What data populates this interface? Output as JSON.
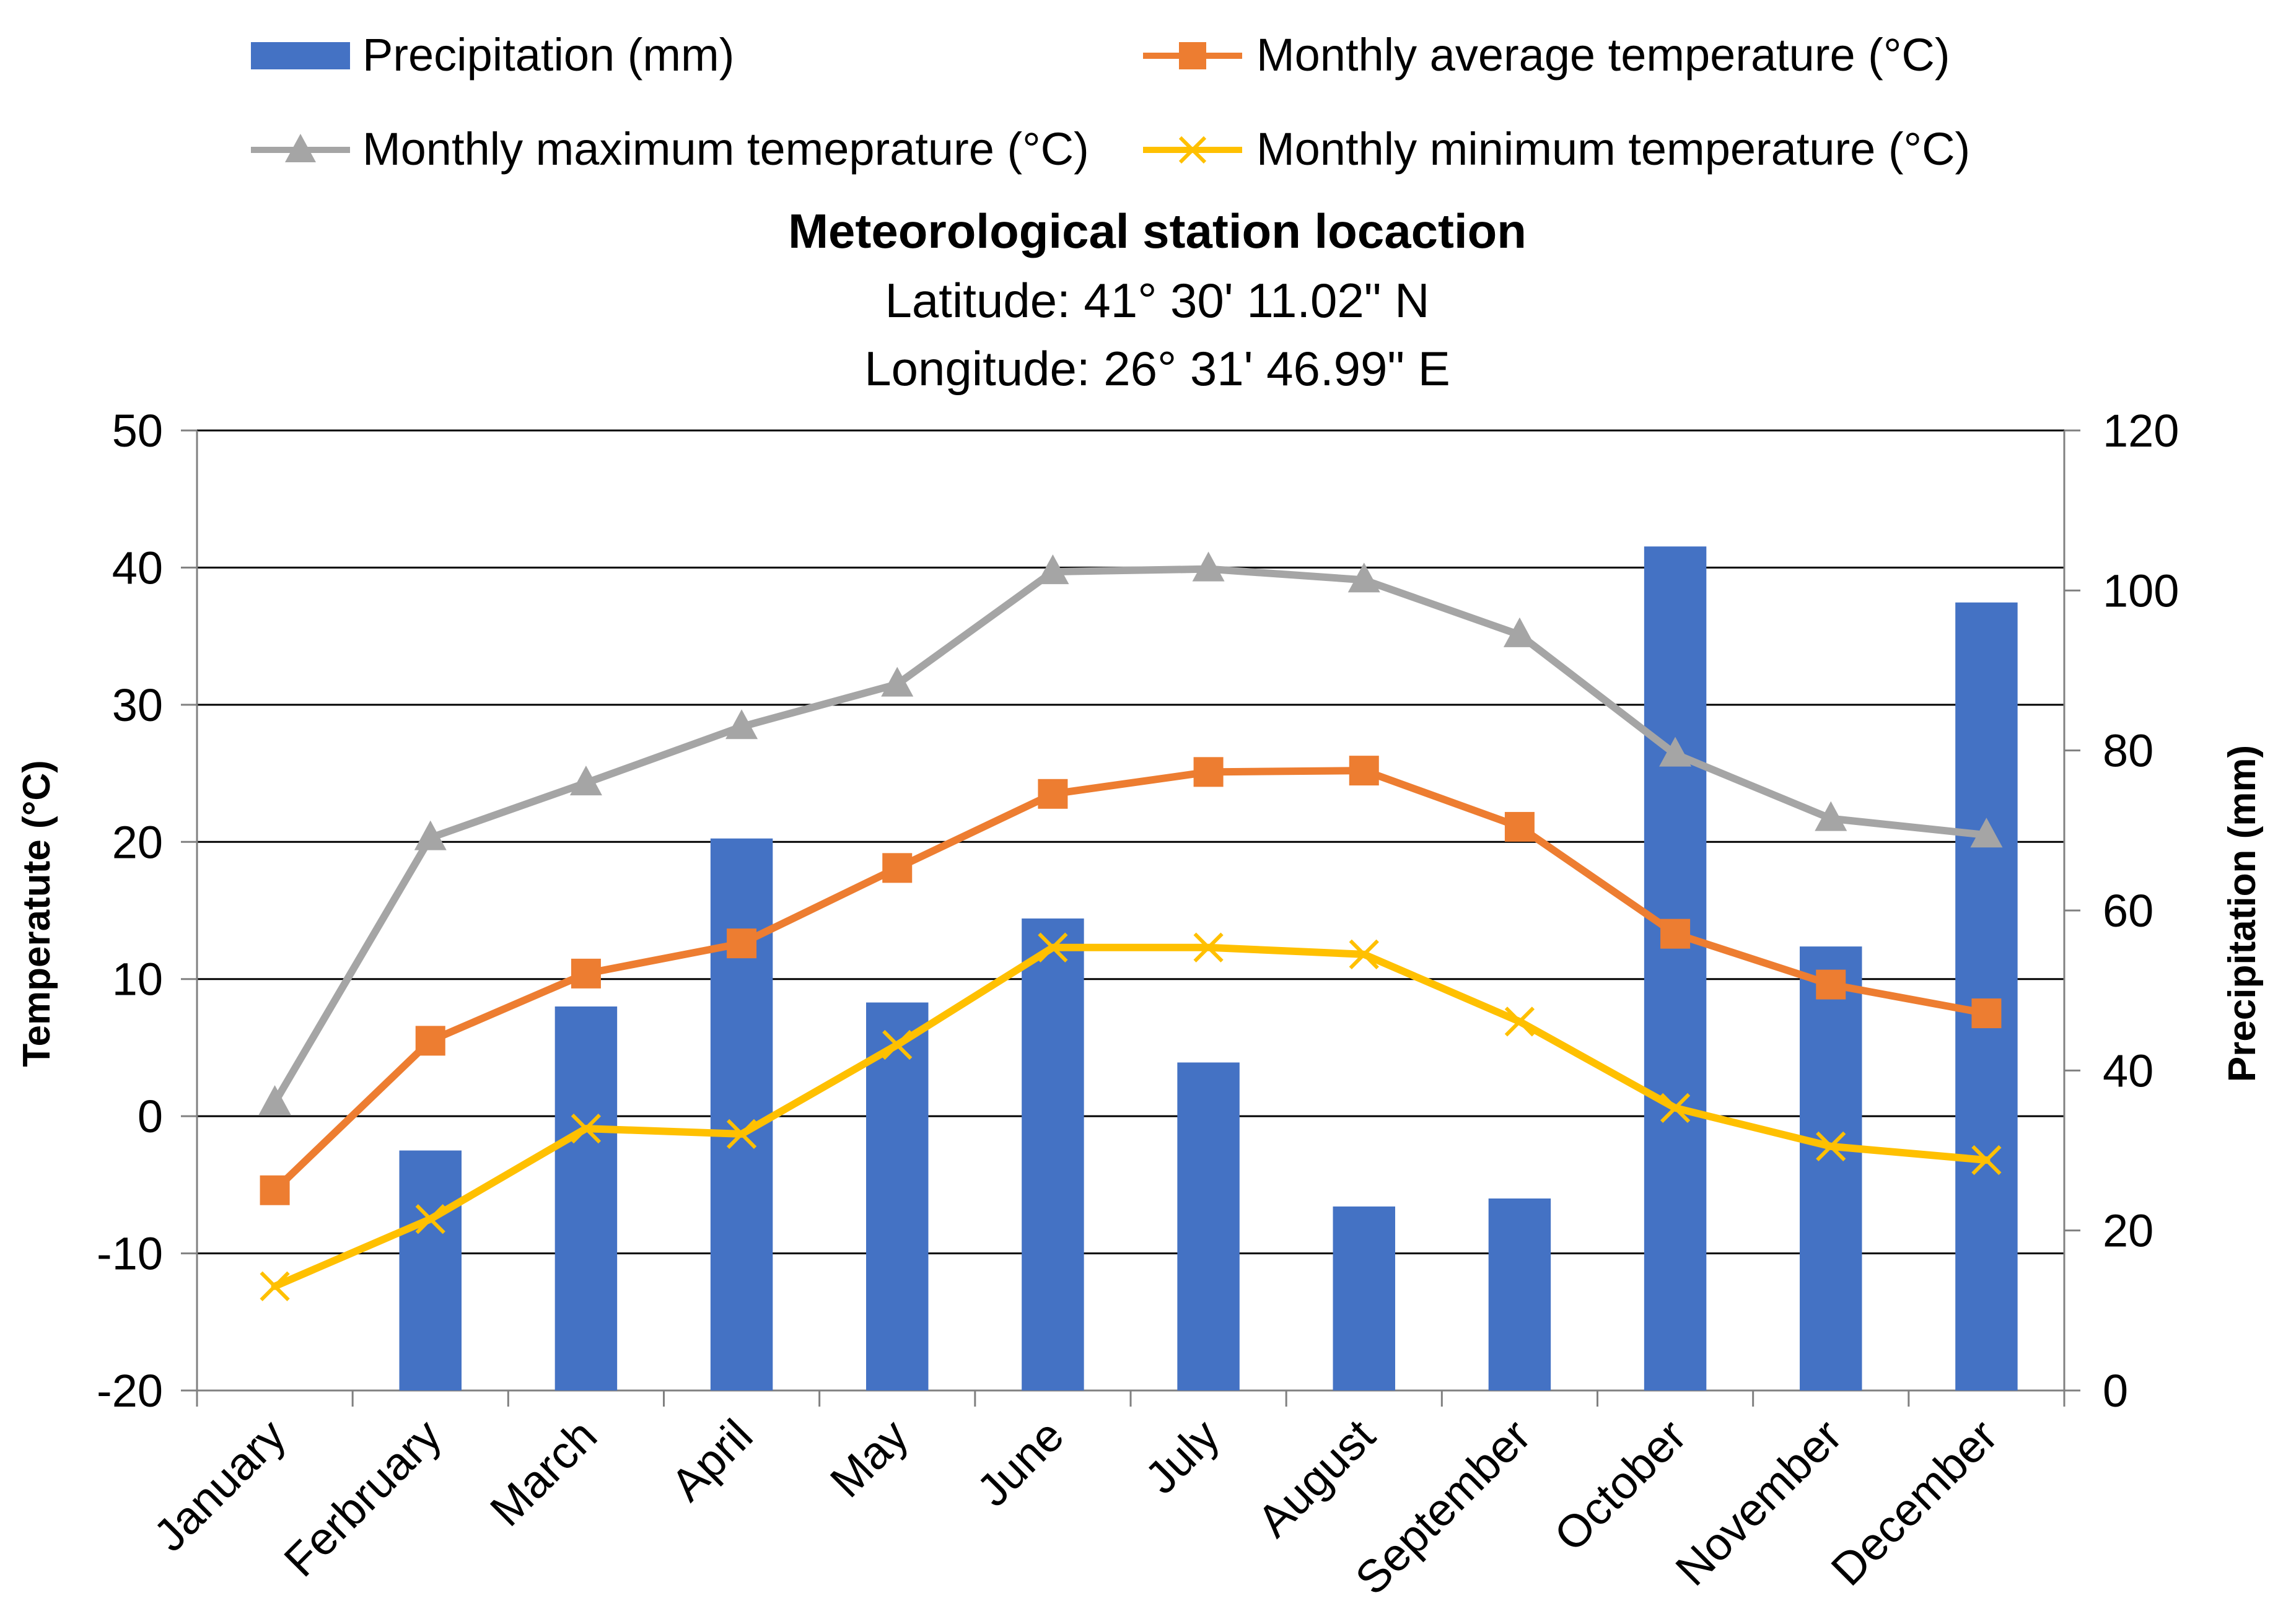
{
  "chart_data": {
    "type": "bar+line",
    "title": "Meteorological station locaction",
    "subtitle_lines": [
      "Latitude: 41° 30' 11.02\" N",
      "Longitude: 26° 31' 46.99\" E"
    ],
    "categories": [
      "January",
      "Ferbruary",
      "March",
      "April",
      "May",
      "June",
      "July",
      "August",
      "September",
      "October",
      "November",
      "December"
    ],
    "y_left": {
      "label": "Temperatute (°C)",
      "min": -20,
      "max": 50,
      "ticks": [
        -20,
        -10,
        0,
        10,
        20,
        30,
        40,
        50
      ]
    },
    "y_right": {
      "label": "Precipitation (mm)",
      "min": 0,
      "max": 120,
      "ticks": [
        0,
        20,
        40,
        60,
        80,
        100,
        120
      ]
    },
    "grid": true,
    "legend_position": "top",
    "series": [
      {
        "name": "Precipitation (mm)",
        "kind": "bar",
        "axis": "right",
        "color": "#4472c4",
        "values": [
          0,
          30,
          48,
          69,
          48.5,
          59,
          41,
          23,
          24,
          105.5,
          55.5,
          98.5
        ]
      },
      {
        "name": "Monthly average temperature (°C)",
        "kind": "line",
        "marker": "square",
        "axis": "left",
        "color": "#ed7d31",
        "values": [
          -5.4,
          5.5,
          10.4,
          12.6,
          18.1,
          23.5,
          25.1,
          25.2,
          21.1,
          13.3,
          9.6,
          7.5
        ]
      },
      {
        "name": "Monthly maximum temeprature (°C)",
        "kind": "line",
        "marker": "triangle",
        "axis": "left",
        "color": "#a5a5a5",
        "values": [
          1.0,
          20.3,
          24.3,
          28.4,
          31.5,
          39.7,
          39.9,
          39.1,
          35.1,
          26.4,
          21.7,
          20.5
        ]
      },
      {
        "name": "Monthly minimum temperature (°C)",
        "kind": "line",
        "marker": "x",
        "axis": "left",
        "color": "#ffc000",
        "values": [
          -12.4,
          -7.5,
          -0.9,
          -1.3,
          5.2,
          12.3,
          12.3,
          11.8,
          6.9,
          0.6,
          -2.2,
          -3.2
        ]
      }
    ]
  }
}
